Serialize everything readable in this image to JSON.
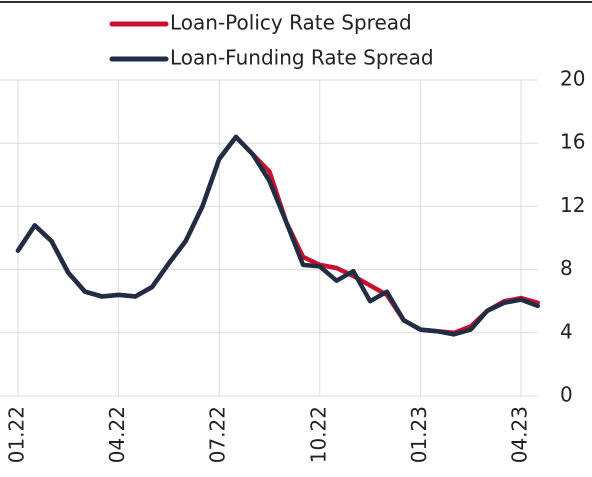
{
  "chart_data": {
    "type": "line",
    "categories": [
      "01.22",
      null,
      null,
      null,
      null,
      null,
      "04.22",
      null,
      null,
      null,
      null,
      null,
      "07.22",
      null,
      null,
      null,
      null,
      null,
      "10.22",
      null,
      null,
      null,
      null,
      null,
      "01.23",
      null,
      null,
      null,
      null,
      null,
      "04.23",
      null
    ],
    "series": [
      {
        "name": "Loan-Policy Rate Spread",
        "color": "#c8102e",
        "values": [
          9.2,
          10.8,
          9.8,
          7.8,
          6.6,
          6.3,
          6.4,
          6.3,
          6.9,
          8.4,
          9.8,
          12.0,
          15.0,
          16.4,
          15.3,
          14.2,
          11.0,
          8.8,
          8.3,
          8.1,
          7.6,
          7.0,
          6.4,
          4.8,
          4.2,
          4.1,
          4.0,
          4.4,
          5.4,
          6.0,
          6.2,
          5.9
        ]
      },
      {
        "name": "Loan-Funding Rate Spread",
        "color": "#1f2d45",
        "values": [
          9.2,
          10.8,
          9.8,
          7.8,
          6.6,
          6.3,
          6.4,
          6.3,
          6.9,
          8.4,
          9.8,
          12.0,
          15.0,
          16.4,
          15.3,
          13.6,
          11.0,
          8.3,
          8.2,
          7.3,
          7.9,
          6.0,
          6.6,
          4.8,
          4.2,
          4.1,
          3.9,
          4.2,
          5.4,
          5.9,
          6.1,
          5.7
        ]
      }
    ],
    "ylim": [
      0,
      20
    ],
    "yticks": [
      0,
      4,
      8,
      12,
      16,
      20
    ],
    "grid": true,
    "legend": "top"
  }
}
